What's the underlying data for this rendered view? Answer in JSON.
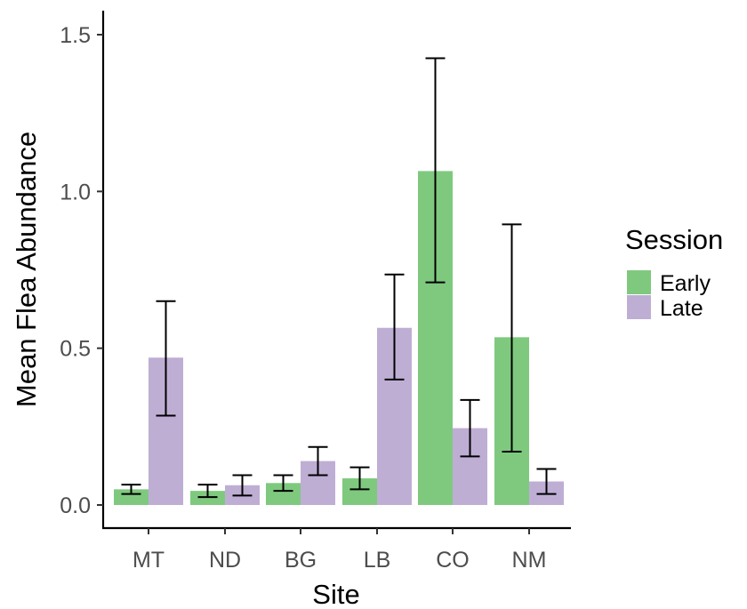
{
  "chart_data": {
    "type": "bar",
    "xlabel": "Site",
    "ylabel": "Mean Flea Abundance",
    "categories": [
      "MT",
      "ND",
      "BG",
      "LB",
      "CO",
      "NM"
    ],
    "ylim": [
      -0.06,
      1.58
    ],
    "yticks": [
      0.0,
      0.5,
      1.0,
      1.5
    ],
    "ytick_labels": [
      "0.0",
      "0.5",
      "1.0",
      "1.5"
    ],
    "grid": false,
    "legend": {
      "title": "Session",
      "position": "right"
    },
    "series": [
      {
        "name": "Early",
        "color": "#7fc97f",
        "values": [
          0.05,
          0.045,
          0.07,
          0.085,
          1.065,
          0.535
        ],
        "error_low": [
          0.035,
          0.025,
          0.045,
          0.05,
          0.71,
          0.17
        ],
        "error_high": [
          0.065,
          0.065,
          0.095,
          0.12,
          1.425,
          0.895
        ]
      },
      {
        "name": "Late",
        "color": "#beaed4",
        "values": [
          0.47,
          0.063,
          0.14,
          0.565,
          0.245,
          0.075
        ],
        "error_low": [
          0.285,
          0.03,
          0.095,
          0.4,
          0.155,
          0.035
        ],
        "error_high": [
          0.65,
          0.095,
          0.185,
          0.735,
          0.335,
          0.115
        ]
      }
    ]
  }
}
